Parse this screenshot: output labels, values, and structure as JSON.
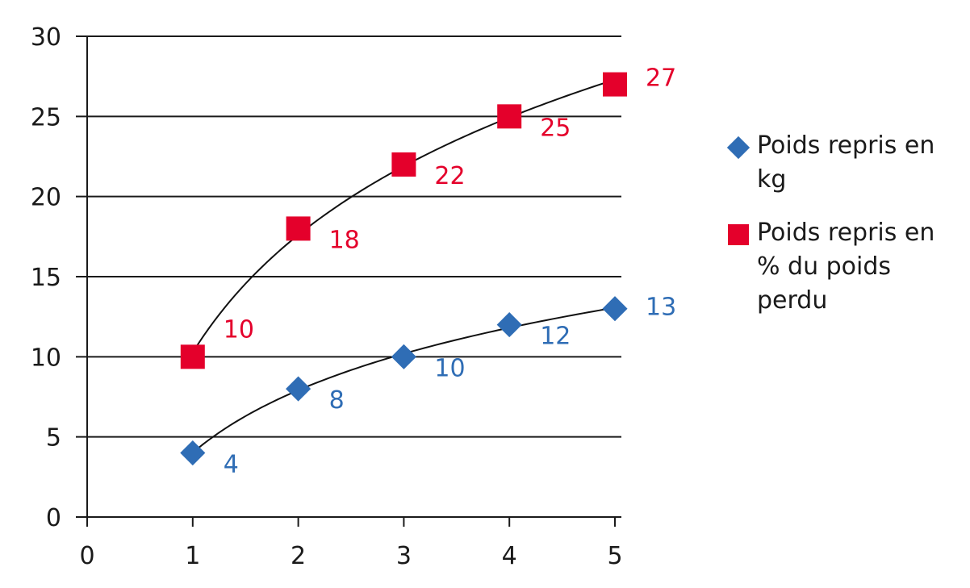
{
  "chart_data": {
    "type": "scatter",
    "title": "",
    "xlabel": "",
    "ylabel": "",
    "xlim": [
      0,
      5
    ],
    "ylim": [
      0,
      30
    ],
    "x_ticks": [
      "0",
      "1",
      "2",
      "3",
      "4",
      "5"
    ],
    "y_ticks": [
      "0",
      "5",
      "10",
      "15",
      "20",
      "25",
      "30"
    ],
    "grid": "horizontal",
    "legend_position": "right",
    "trendlines": "logarithmic, black",
    "series": [
      {
        "name": "Poids repris en kg",
        "marker": "diamond",
        "color": "#2f6db5",
        "x": [
          1,
          2,
          3,
          4,
          5
        ],
        "values": [
          4,
          8,
          10,
          12,
          13
        ],
        "labels": [
          "4",
          "8",
          "10",
          "12",
          "13"
        ]
      },
      {
        "name": "Poids repris en % du poids perdu",
        "marker": "square",
        "color": "#e4002b",
        "x": [
          1,
          2,
          3,
          4,
          5
        ],
        "values": [
          10,
          18,
          22,
          25,
          27
        ],
        "labels": [
          "10",
          "18",
          "22",
          "25",
          "27"
        ]
      }
    ]
  },
  "legend": {
    "items": [
      {
        "label": "Poids repris en kg",
        "color": "#2f6db5",
        "marker": "diamond"
      },
      {
        "label": "Poids repris en % du poids perdu",
        "color": "#e4002b",
        "marker": "square"
      }
    ]
  }
}
